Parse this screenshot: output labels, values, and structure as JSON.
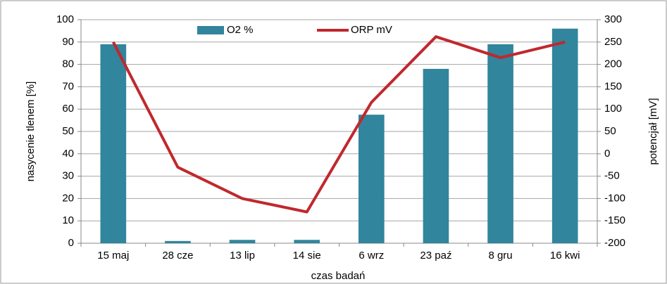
{
  "chart_data": {
    "type": "bar",
    "categories": [
      "15 maj",
      "28 cze",
      "13 lip",
      "14 sie",
      "6 wrz",
      "23 paź",
      "8 gru",
      "16 kwi"
    ],
    "series": [
      {
        "name": "O2 %",
        "type": "bar",
        "color": "#31859c",
        "values": [
          89,
          1,
          1.5,
          1.5,
          57.5,
          78,
          89,
          96
        ]
      },
      {
        "name": "ORP mV",
        "type": "line",
        "axis": "y2",
        "color": "#c0282d",
        "values": [
          250,
          -30,
          -100,
          -130,
          115,
          262,
          215,
          250
        ]
      }
    ],
    "xlabel": "czas badań",
    "ylabel": "nasycenie tlenem [%]",
    "y2label": "potencjał [mV]",
    "ylim": [
      0,
      100
    ],
    "yticks": [
      0,
      10,
      20,
      30,
      40,
      50,
      60,
      70,
      80,
      90,
      100
    ],
    "y2lim": [
      -200,
      300
    ],
    "y2ticks": [
      -200,
      -150,
      -100,
      -50,
      0,
      50,
      100,
      150,
      200,
      250,
      300
    ],
    "grid": true,
    "legend": "top"
  }
}
